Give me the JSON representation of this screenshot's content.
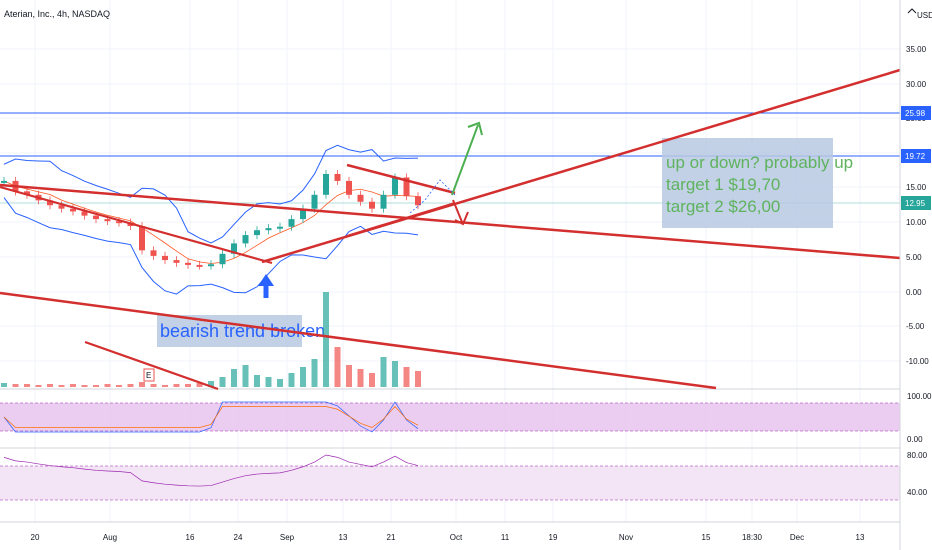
{
  "header": {
    "title": "Aterian, Inc., 4h, NASDAQ",
    "currency": "USD"
  },
  "chart_data": {
    "type": "candlestick",
    "title": "Aterian, Inc., 4h, NASDAQ",
    "y_axis_ticks": [
      "35.00",
      "30.00",
      "25.00",
      "20.00",
      "15.00",
      "10.00",
      "5.00",
      "0.00",
      "-5.00",
      "-10.00"
    ],
    "x_axis_ticks": [
      "20",
      "Aug",
      "16",
      "24",
      "Sep",
      "13",
      "21",
      "Oct",
      "11",
      "19",
      "Nov",
      "15",
      "18:30",
      "Dec",
      "13"
    ],
    "price_tags": [
      "25.98",
      "19.72",
      "12.95"
    ],
    "close_series_approx": [
      16.0,
      14.5,
      14.0,
      13.2,
      12.5,
      12.0,
      11.6,
      11.0,
      10.5,
      10.2,
      10.0,
      9.5,
      6.0,
      5.2,
      4.6,
      4.2,
      3.9,
      3.8,
      4.0,
      5.5,
      7.0,
      8.2,
      8.9,
      9.2,
      9.4,
      10.5,
      12.0,
      14.0,
      17.0,
      16.0,
      14.0,
      13.0,
      12.0,
      14.0,
      16.5,
      13.8,
      12.5
    ],
    "stoch_ticks": [
      "100.00",
      "0.00"
    ],
    "rsi_ticks": [
      "80.00",
      "40.00"
    ],
    "annotations": {
      "analysis_lines": [
        "up or down? probably up",
        "target 1 $19,70",
        "target 2 $26,00"
      ],
      "trend_note": "bearish trend broken",
      "earnings_marker": "E"
    }
  },
  "colors": {
    "up_candle": "#26a69a",
    "down_candle": "#ef5350",
    "trendline": "#d32f2f",
    "bollinger": "#2962ff",
    "horizontal_level": "#2962ff",
    "arrow_green": "#4caf50",
    "arrow_blue": "#2962ff",
    "note_box": "#b7c9e2",
    "stoch_band": "#e1bee7",
    "rsi_band": "#f3e5f5"
  },
  "icons": {
    "scroll_top": "chevron-up-icon"
  }
}
